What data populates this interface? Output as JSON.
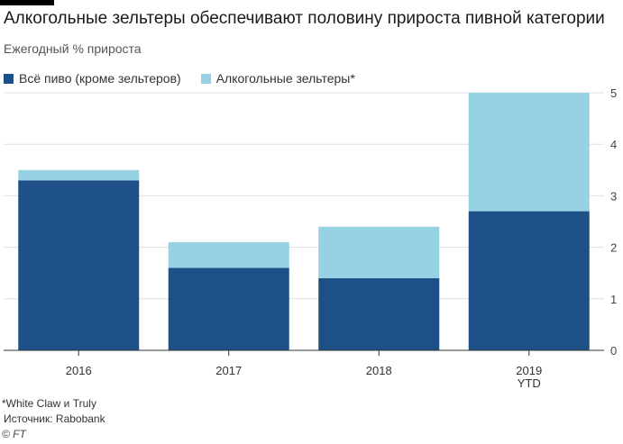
{
  "title": "Алкогольные зельтеры обеспечивают половину прироста пивной категории",
  "subtitle": "Ежегодный % прироста",
  "footnote": "*White Claw и Truly",
  "source": "Источник: Rabobank",
  "credit": "© FT",
  "colors": {
    "beer": "#1e5088",
    "seltzer": "#96d2e4",
    "grid": "#e0e0e0",
    "axis": "#333333"
  },
  "chart_data": {
    "type": "bar",
    "stacked": true,
    "categories": [
      [
        "2016"
      ],
      [
        "2017"
      ],
      [
        "2018"
      ],
      [
        "2019",
        "YTD"
      ]
    ],
    "series": [
      {
        "name": "Всё пиво (кроме зельтеров)",
        "values": [
          3.3,
          1.6,
          1.4,
          2.7
        ]
      },
      {
        "name": "Алкогольные зельтеры*",
        "values": [
          0.2,
          0.5,
          1.0,
          2.3
        ]
      }
    ],
    "ylim": [
      0,
      5
    ],
    "yticks": [
      "0",
      "1",
      "2",
      "3",
      "4",
      "5"
    ],
    "yaxis_position": "right",
    "grid": true,
    "legend_position": "top-left"
  }
}
